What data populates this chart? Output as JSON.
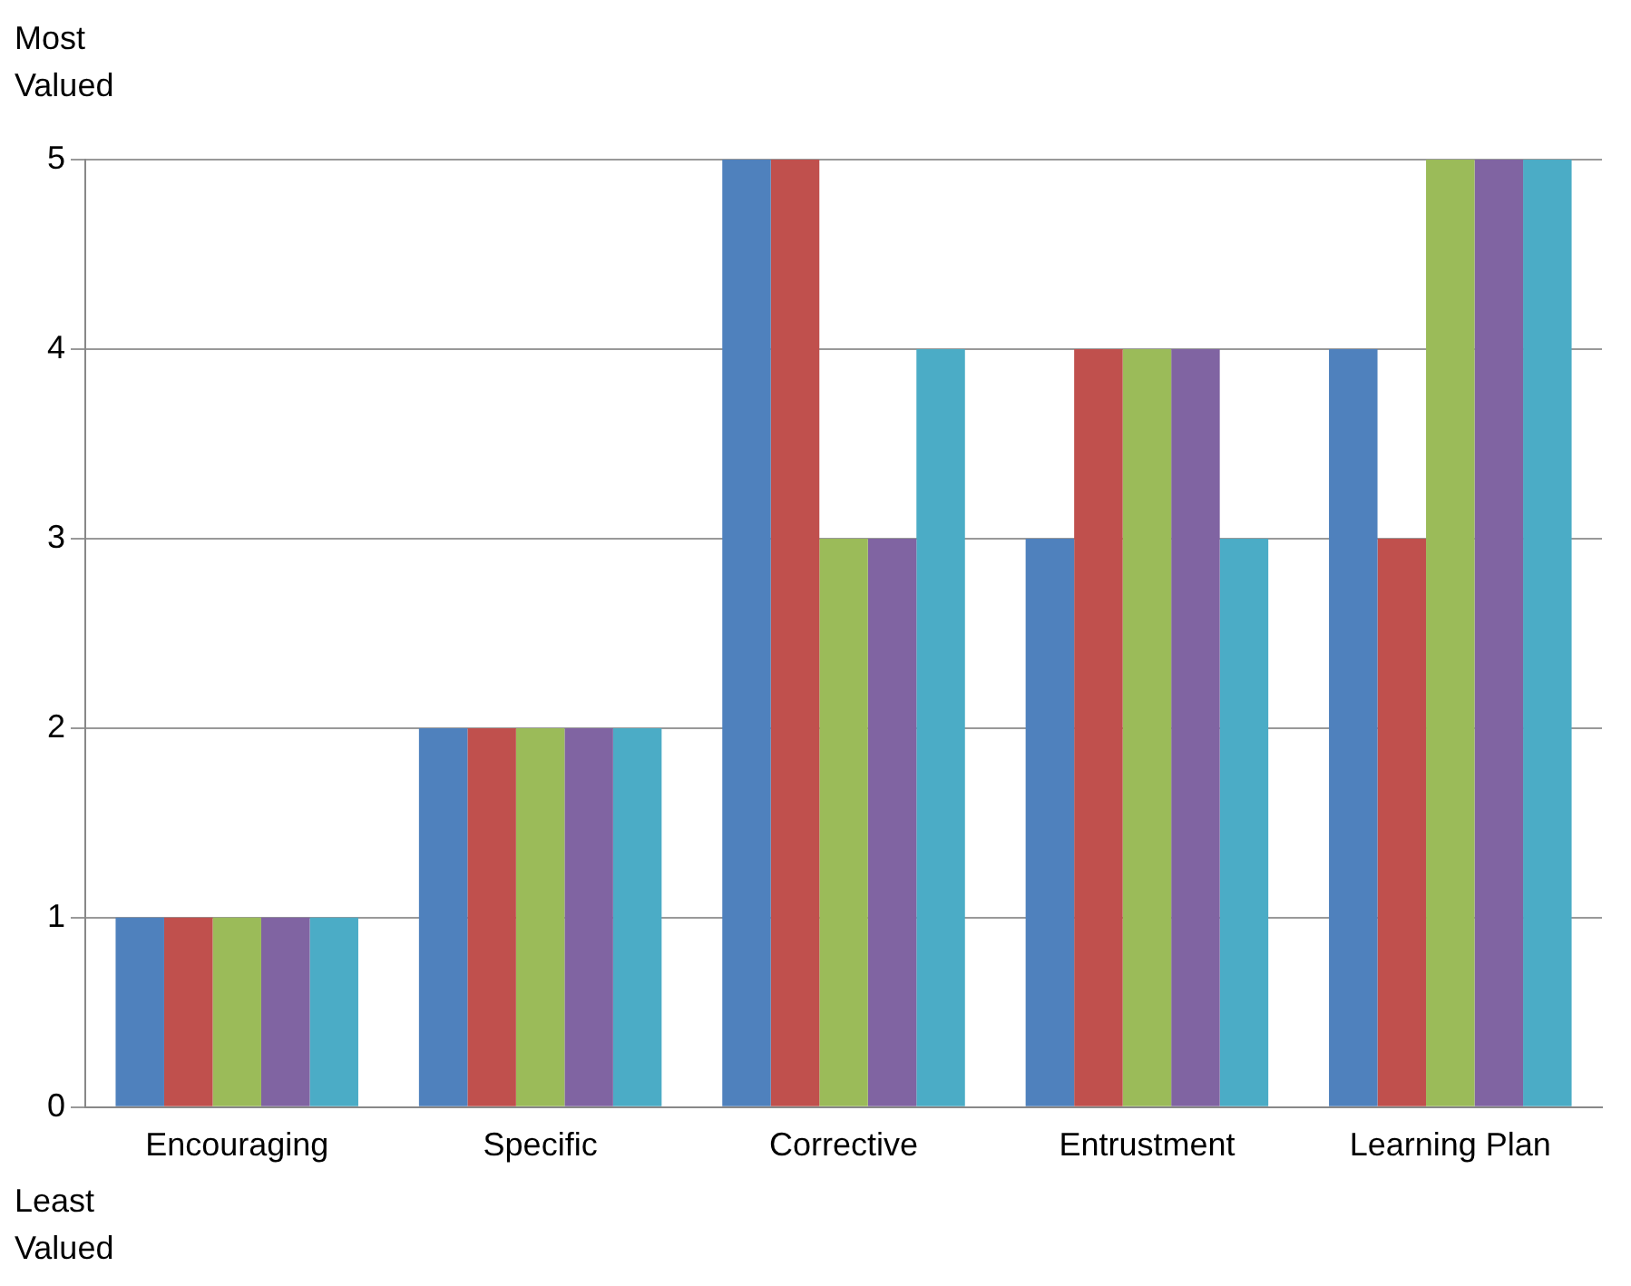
{
  "chart_data": {
    "type": "bar",
    "categories": [
      "Encouraging",
      "Specific",
      "Corrective",
      "Entrustment",
      "Learning Plan"
    ],
    "series": [
      {
        "color": "#4f81bd",
        "values": [
          1,
          2,
          5,
          3,
          4
        ]
      },
      {
        "color": "#c0504d",
        "values": [
          1,
          2,
          5,
          4,
          3
        ]
      },
      {
        "color": "#9bbb59",
        "values": [
          1,
          2,
          3,
          4,
          5
        ]
      },
      {
        "color": "#8064a2",
        "values": [
          1,
          2,
          3,
          4,
          5
        ]
      },
      {
        "color": "#4bacc6",
        "values": [
          1,
          2,
          4,
          3,
          5
        ]
      }
    ],
    "ylim": [
      0,
      5
    ],
    "yticks": [
      0,
      1,
      2,
      3,
      4,
      5
    ],
    "grid": "y",
    "legend": false,
    "annotations": [
      "Most Valued",
      "Least Valued"
    ]
  }
}
